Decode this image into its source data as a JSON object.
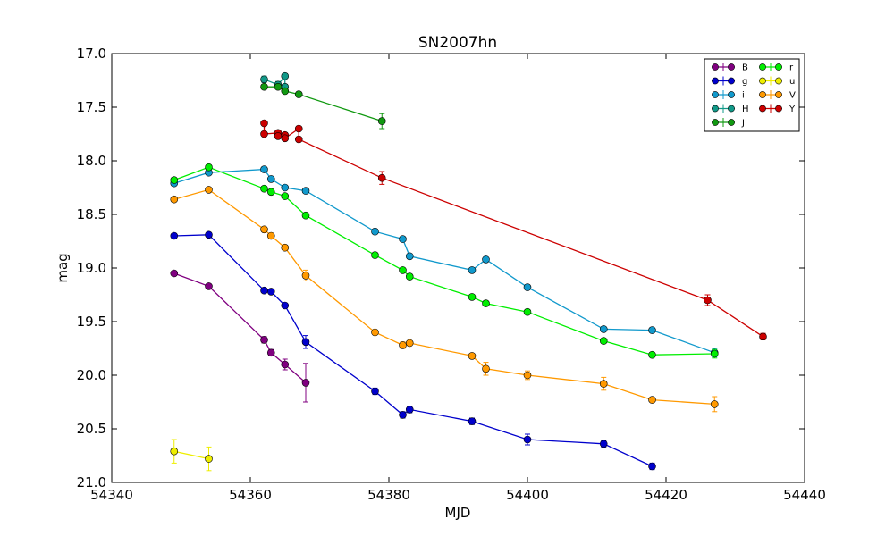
{
  "chart_data": {
    "type": "scatter",
    "title": "SN2007hn",
    "xlabel": "MJD",
    "ylabel": "mag",
    "xlim": [
      54340,
      54440
    ],
    "ylim": [
      17.0,
      21.0
    ],
    "y_inverted": true,
    "xticks": [
      "54340",
      "54360",
      "54380",
      "54400",
      "54420",
      "54440"
    ],
    "yticks": [
      "17.0",
      "17.5",
      "18.0",
      "18.5",
      "19.0",
      "19.5",
      "20.0",
      "20.5",
      "21.0"
    ],
    "grid": false,
    "legend_position": "top-right",
    "series": [
      {
        "name": "B",
        "color": "#800080",
        "points": [
          [
            54349,
            19.05,
            0.02
          ],
          [
            54354,
            19.17,
            0.02
          ],
          [
            54362,
            19.67,
            0.03
          ],
          [
            54363,
            19.79,
            0.03
          ],
          [
            54365,
            19.9,
            0.05
          ],
          [
            54368,
            20.07,
            0.18
          ]
        ]
      },
      {
        "name": "g",
        "color": "#0000cc",
        "points": [
          [
            54349,
            18.7,
            0.02
          ],
          [
            54354,
            18.69,
            0.02
          ],
          [
            54362,
            19.21,
            0.02
          ],
          [
            54363,
            19.22,
            0.02
          ],
          [
            54365,
            19.35,
            0.02
          ],
          [
            54368,
            19.69,
            0.06
          ],
          [
            54378,
            20.15,
            0.03
          ],
          [
            54382,
            20.37,
            0.03
          ],
          [
            54383,
            20.32,
            0.03
          ],
          [
            54392,
            20.43,
            0.03
          ],
          [
            54400,
            20.6,
            0.05
          ],
          [
            54411,
            20.64,
            0.03
          ],
          [
            54418,
            20.85,
            0.03
          ]
        ]
      },
      {
        "name": "i",
        "color": "#1199cc",
        "points": [
          [
            54349,
            18.21,
            0.02
          ],
          [
            54354,
            18.11,
            0.02
          ],
          [
            54362,
            18.08,
            0.02
          ],
          [
            54363,
            18.17,
            0.02
          ],
          [
            54365,
            18.25,
            0.02
          ],
          [
            54368,
            18.28,
            0.02
          ],
          [
            54378,
            18.66,
            0.02
          ],
          [
            54382,
            18.73,
            0.02
          ],
          [
            54383,
            18.89,
            0.02
          ],
          [
            54392,
            19.02,
            0.02
          ],
          [
            54394,
            18.92,
            0.02
          ],
          [
            54400,
            19.18,
            0.02
          ],
          [
            54411,
            19.57,
            0.02
          ],
          [
            54418,
            19.58,
            0.02
          ],
          [
            54427,
            19.79,
            0.04
          ]
        ]
      },
      {
        "name": "H",
        "color": "#119988",
        "points": [
          [
            54362,
            17.24,
            0.03
          ],
          [
            54364,
            17.29,
            0.03
          ],
          [
            54365,
            17.21,
            0.02
          ],
          [
            54365,
            17.31,
            0.02
          ]
        ]
      },
      {
        "name": "J",
        "color": "#119911",
        "points": [
          [
            54362,
            17.31,
            0.02
          ],
          [
            54364,
            17.31,
            0.02
          ],
          [
            54365,
            17.35,
            0.02
          ],
          [
            54367,
            17.38,
            0.02
          ],
          [
            54379,
            17.63,
            0.07
          ]
        ]
      },
      {
        "name": "r",
        "color": "#00ee00",
        "points": [
          [
            54349,
            18.18,
            0.02
          ],
          [
            54354,
            18.06,
            0.02
          ],
          [
            54362,
            18.26,
            0.02
          ],
          [
            54363,
            18.29,
            0.02
          ],
          [
            54365,
            18.33,
            0.02
          ],
          [
            54368,
            18.51,
            0.02
          ],
          [
            54378,
            18.88,
            0.02
          ],
          [
            54382,
            19.02,
            0.02
          ],
          [
            54383,
            19.08,
            0.02
          ],
          [
            54392,
            19.27,
            0.02
          ],
          [
            54394,
            19.33,
            0.02
          ],
          [
            54400,
            19.41,
            0.02
          ],
          [
            54411,
            19.68,
            0.02
          ],
          [
            54418,
            19.81,
            0.02
          ],
          [
            54427,
            19.8,
            0.04
          ]
        ]
      },
      {
        "name": "u",
        "color": "#eeee00",
        "points": [
          [
            54349,
            20.71,
            0.11
          ],
          [
            54354,
            20.78,
            0.11
          ]
        ]
      },
      {
        "name": "V",
        "color": "#ff9900",
        "points": [
          [
            54349,
            18.36,
            0.02
          ],
          [
            54354,
            18.27,
            0.02
          ],
          [
            54362,
            18.64,
            0.02
          ],
          [
            54363,
            18.7,
            0.02
          ],
          [
            54365,
            18.81,
            0.02
          ],
          [
            54368,
            19.07,
            0.05
          ],
          [
            54378,
            19.6,
            0.02
          ],
          [
            54382,
            19.72,
            0.03
          ],
          [
            54383,
            19.7,
            0.02
          ],
          [
            54392,
            19.82,
            0.02
          ],
          [
            54394,
            19.94,
            0.06
          ],
          [
            54400,
            20.0,
            0.04
          ],
          [
            54411,
            20.08,
            0.06
          ],
          [
            54418,
            20.23,
            0.02
          ],
          [
            54427,
            20.27,
            0.07
          ]
        ]
      },
      {
        "name": "Y",
        "color": "#cc0000",
        "points": [
          [
            54362,
            17.65,
            0.02
          ],
          [
            54362,
            17.75,
            0.02
          ],
          [
            54364,
            17.74,
            0.02
          ],
          [
            54364,
            17.77,
            0.02
          ],
          [
            54365,
            17.76,
            0.02
          ],
          [
            54365,
            17.79,
            0.02
          ],
          [
            54367,
            17.7,
            0.02
          ],
          [
            54367,
            17.8,
            0.02
          ],
          [
            54379,
            18.16,
            0.06
          ],
          [
            54426,
            19.3,
            0.05
          ],
          [
            54434,
            19.64,
            0.03
          ]
        ]
      }
    ]
  }
}
